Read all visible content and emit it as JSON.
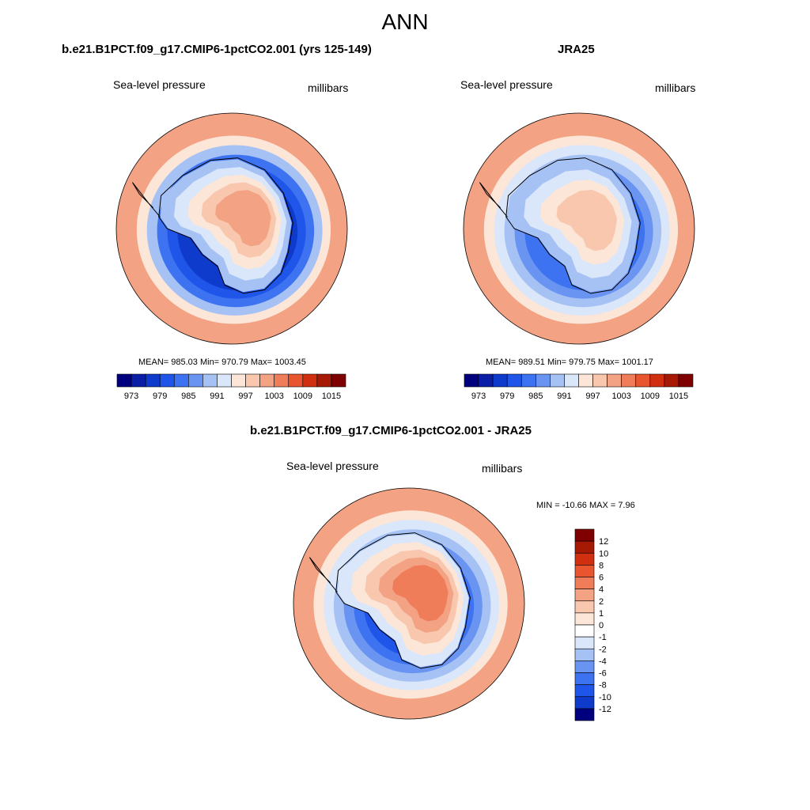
{
  "figure": {
    "title": "ANN"
  },
  "chart_data": [
    {
      "type": "heatmap",
      "title": "b.e21.B1PCT.f09_g17.CMIP6-1pctCO2.001 (yrs 125-149)",
      "variable": "Sea-level pressure",
      "units": "millibars",
      "projection": "south-polar-stereographic",
      "stats_text": "MEAN= 985.03  Min= 970.79  Max= 1003.45",
      "mean": 985.03,
      "min": 970.79,
      "max": 1003.45,
      "colorbar": {
        "orientation": "horizontal",
        "tick_labels": [
          "973",
          "979",
          "985",
          "991",
          "997",
          "1003",
          "1009",
          "1015"
        ],
        "colors": [
          "#00007f",
          "#0a1fa6",
          "#0f3bcc",
          "#1f55e8",
          "#3d73f0",
          "#6a94f2",
          "#a6c2f5",
          "#dae6f9",
          "#fce6d8",
          "#f8c7ae",
          "#f3a283",
          "#ef7d5a",
          "#e8552e",
          "#d03010",
          "#a61a05",
          "#7f0000"
        ]
      },
      "rings": [
        {
          "value": 1000,
          "color": "#f3a283"
        },
        {
          "value": 994,
          "color": "#fce6d8"
        },
        {
          "value": 989,
          "color": "#a6c2f5"
        },
        {
          "value": 985,
          "color": "#3d73f0"
        },
        {
          "value": 980,
          "color": "#1f55e8"
        },
        {
          "value": 976,
          "color": "#0f3bcc"
        }
      ],
      "interior": [
        {
          "value": 991,
          "color": "#a6c2f5"
        },
        {
          "value": 995,
          "color": "#dae6f9"
        },
        {
          "value": 998,
          "color": "#fce6d8"
        },
        {
          "value": 1001,
          "color": "#f8c7ae"
        },
        {
          "value": 1003,
          "color": "#f3a283"
        }
      ]
    },
    {
      "type": "heatmap",
      "title": "JRA25",
      "variable": "Sea-level pressure",
      "units": "millibars",
      "projection": "south-polar-stereographic",
      "stats_text": "MEAN= 989.51  Min= 979.75  Max= 1001.17",
      "mean": 989.51,
      "min": 979.75,
      "max": 1001.17,
      "colorbar": {
        "orientation": "horizontal",
        "tick_labels": [
          "973",
          "979",
          "985",
          "991",
          "997",
          "1003",
          "1009",
          "1015"
        ],
        "colors": [
          "#00007f",
          "#0a1fa6",
          "#0f3bcc",
          "#1f55e8",
          "#3d73f0",
          "#6a94f2",
          "#a6c2f5",
          "#dae6f9",
          "#fce6d8",
          "#f8c7ae",
          "#f3a283",
          "#ef7d5a",
          "#e8552e",
          "#d03010",
          "#a61a05",
          "#7f0000"
        ]
      },
      "rings": [
        {
          "value": 1000,
          "color": "#f3a283"
        },
        {
          "value": 996,
          "color": "#fce6d8"
        },
        {
          "value": 992,
          "color": "#dae6f9"
        },
        {
          "value": 989,
          "color": "#a6c2f5"
        },
        {
          "value": 986,
          "color": "#6a94f2"
        },
        {
          "value": 983,
          "color": "#3d73f0"
        }
      ],
      "interior": [
        {
          "value": 992,
          "color": "#a6c2f5"
        },
        {
          "value": 995,
          "color": "#dae6f9"
        },
        {
          "value": 998,
          "color": "#fce6d8"
        },
        {
          "value": 1000,
          "color": "#f8c7ae"
        }
      ]
    },
    {
      "type": "heatmap",
      "title": "b.e21.B1PCT.f09_g17.CMIP6-1pctCO2.001 - JRA25",
      "variable": "Sea-level pressure",
      "units": "millibars",
      "projection": "south-polar-stereographic",
      "stats_text": "MIN = -10.66 MAX =   7.96",
      "min": -10.66,
      "max": 7.96,
      "colorbar": {
        "orientation": "vertical",
        "tick_labels": [
          "12",
          "10",
          "8",
          "6",
          "4",
          "2",
          "1",
          "0",
          "-1",
          "-2",
          "-4",
          "-6",
          "-8",
          "-10",
          "-12"
        ],
        "colors": [
          "#7f0000",
          "#a61a05",
          "#d03010",
          "#e8552e",
          "#ef7d5a",
          "#f3a283",
          "#f8c7ae",
          "#fce6d8",
          "#ffffff",
          "#dae6f9",
          "#a6c2f5",
          "#6a94f2",
          "#3d73f0",
          "#1f55e8",
          "#0f3bcc",
          "#00007f"
        ]
      },
      "rings": [
        {
          "value": 2,
          "color": "#f3a283"
        },
        {
          "value": 0,
          "color": "#fce6d8"
        },
        {
          "value": -1,
          "color": "#dae6f9"
        },
        {
          "value": -3,
          "color": "#a6c2f5"
        },
        {
          "value": -5,
          "color": "#6a94f2"
        },
        {
          "value": -7,
          "color": "#3d73f0"
        },
        {
          "value": -9,
          "color": "#1f55e8"
        }
      ],
      "interior": [
        {
          "value": -1,
          "color": "#dae6f9"
        },
        {
          "value": 1,
          "color": "#fce6d8"
        },
        {
          "value": 3,
          "color": "#f8c7ae"
        },
        {
          "value": 5,
          "color": "#f3a283"
        },
        {
          "value": 7,
          "color": "#ef7d5a"
        }
      ]
    }
  ]
}
